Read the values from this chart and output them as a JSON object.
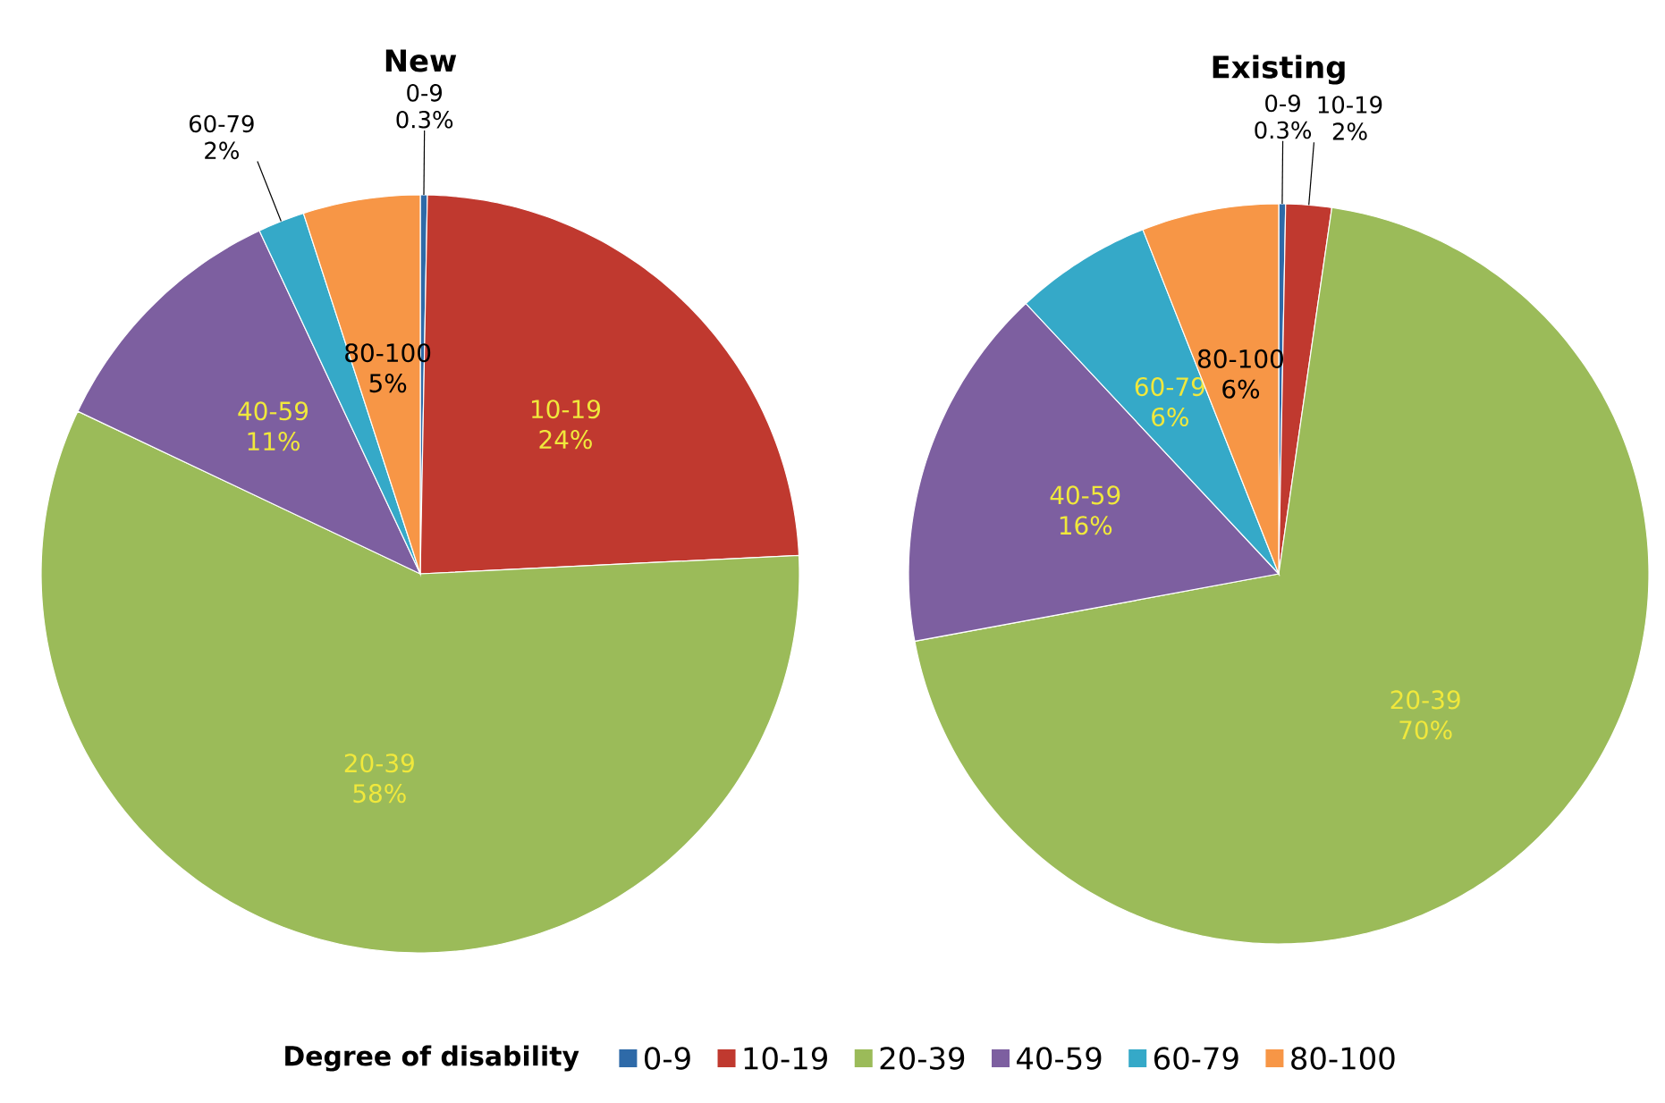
{
  "chart_data": [
    {
      "type": "pie",
      "title": "New",
      "legend": "bottom",
      "legend_title": "Degree of disability",
      "categories": [
        "0-9",
        "10-19",
        "20-39",
        "40-59",
        "60-79",
        "80-100"
      ],
      "values": [
        0.3,
        24,
        58,
        11,
        2,
        5
      ],
      "value_labels": [
        "0.3%",
        "24%",
        "58%",
        "11%",
        "2%",
        "5%"
      ],
      "colors": [
        "#2e6aa8",
        "#c0392f",
        "#9bbb59",
        "#7d5fa0",
        "#35a9c8",
        "#f79646"
      ]
    },
    {
      "type": "pie",
      "title": "Existing",
      "categories": [
        "0-9",
        "10-19",
        "20-39",
        "40-59",
        "60-79",
        "80-100"
      ],
      "values": [
        0.3,
        2,
        70,
        16,
        6,
        6
      ],
      "value_labels": [
        "0.3%",
        "2%",
        "70%",
        "16%",
        "6%",
        "6%"
      ],
      "colors": [
        "#2e6aa8",
        "#c0392f",
        "#9bbb59",
        "#7d5fa0",
        "#35a9c8",
        "#f79646"
      ]
    }
  ]
}
